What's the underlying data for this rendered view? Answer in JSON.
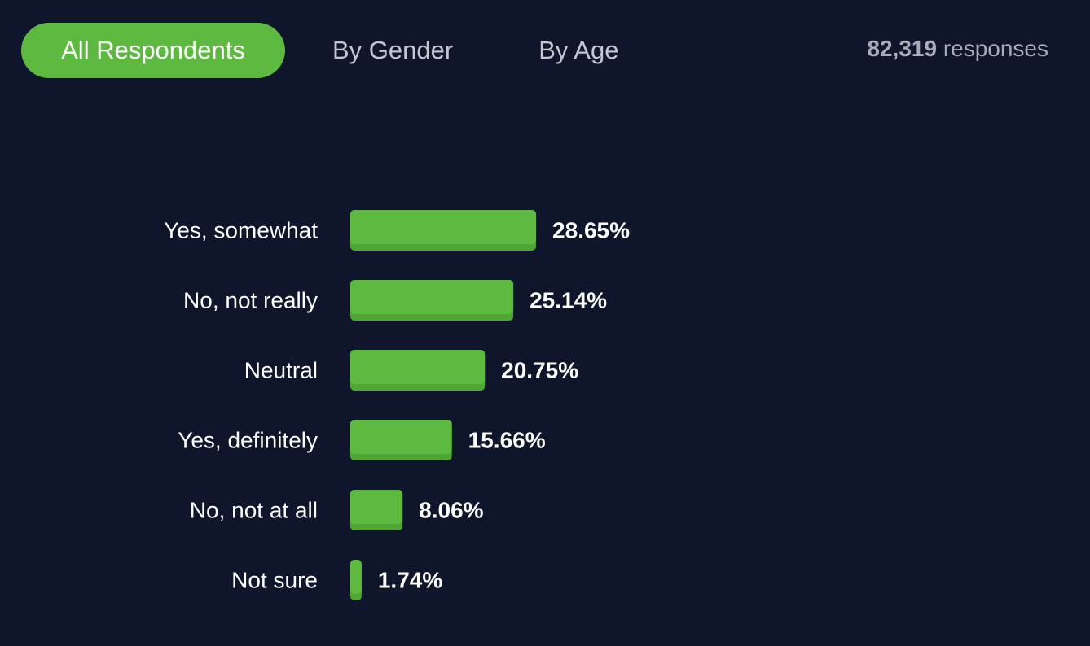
{
  "tabs": [
    {
      "label": "All Respondents",
      "active": true
    },
    {
      "label": "By Gender",
      "active": false
    },
    {
      "label": "By Age",
      "active": false
    }
  ],
  "responses": {
    "count": "82,319",
    "label": "responses"
  },
  "colors": {
    "background": "#0f152b",
    "bar": "#5db93f",
    "bar_shade": "#4fa636",
    "active_tab": "#5db93f",
    "text": "#ffffff",
    "muted_text": "#a7acb6"
  },
  "chart_data": {
    "type": "bar",
    "orientation": "horizontal",
    "categories": [
      "Yes, somewhat",
      "No, not really",
      "Neutral",
      "Yes, definitely",
      "No, not at all",
      "Not sure"
    ],
    "values": [
      28.65,
      25.14,
      20.75,
      15.66,
      8.06,
      1.74
    ],
    "value_labels": [
      "28.65%",
      "25.14%",
      "20.75%",
      "15.66%",
      "8.06%",
      "1.74%"
    ],
    "unit": "%",
    "grid": false,
    "legend": "none"
  }
}
